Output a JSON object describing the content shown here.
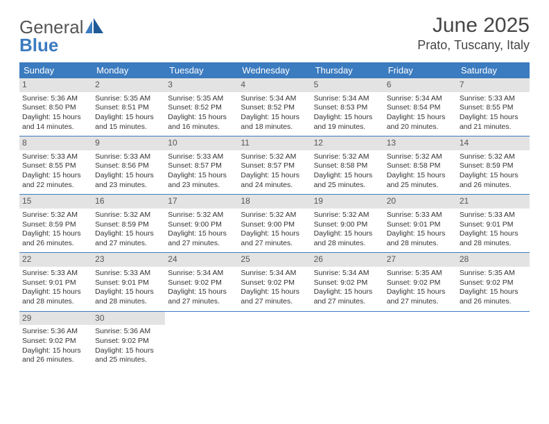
{
  "logo": {
    "text1": "General",
    "text2": "Blue"
  },
  "title": "June 2025",
  "location": "Prato, Tuscany, Italy",
  "colors": {
    "header_bg": "#3b7bbf",
    "header_text": "#ffffff",
    "daynum_bg": "#e3e3e3",
    "week_divider": "#3b7bbf",
    "text": "#333333"
  },
  "weekdays": [
    "Sunday",
    "Monday",
    "Tuesday",
    "Wednesday",
    "Thursday",
    "Friday",
    "Saturday"
  ],
  "weeks": [
    [
      {
        "n": "1",
        "sr": "Sunrise: 5:36 AM",
        "ss": "Sunset: 8:50 PM",
        "d1": "Daylight: 15 hours",
        "d2": "and 14 minutes."
      },
      {
        "n": "2",
        "sr": "Sunrise: 5:35 AM",
        "ss": "Sunset: 8:51 PM",
        "d1": "Daylight: 15 hours",
        "d2": "and 15 minutes."
      },
      {
        "n": "3",
        "sr": "Sunrise: 5:35 AM",
        "ss": "Sunset: 8:52 PM",
        "d1": "Daylight: 15 hours",
        "d2": "and 16 minutes."
      },
      {
        "n": "4",
        "sr": "Sunrise: 5:34 AM",
        "ss": "Sunset: 8:52 PM",
        "d1": "Daylight: 15 hours",
        "d2": "and 18 minutes."
      },
      {
        "n": "5",
        "sr": "Sunrise: 5:34 AM",
        "ss": "Sunset: 8:53 PM",
        "d1": "Daylight: 15 hours",
        "d2": "and 19 minutes."
      },
      {
        "n": "6",
        "sr": "Sunrise: 5:34 AM",
        "ss": "Sunset: 8:54 PM",
        "d1": "Daylight: 15 hours",
        "d2": "and 20 minutes."
      },
      {
        "n": "7",
        "sr": "Sunrise: 5:33 AM",
        "ss": "Sunset: 8:55 PM",
        "d1": "Daylight: 15 hours",
        "d2": "and 21 minutes."
      }
    ],
    [
      {
        "n": "8",
        "sr": "Sunrise: 5:33 AM",
        "ss": "Sunset: 8:55 PM",
        "d1": "Daylight: 15 hours",
        "d2": "and 22 minutes."
      },
      {
        "n": "9",
        "sr": "Sunrise: 5:33 AM",
        "ss": "Sunset: 8:56 PM",
        "d1": "Daylight: 15 hours",
        "d2": "and 23 minutes."
      },
      {
        "n": "10",
        "sr": "Sunrise: 5:33 AM",
        "ss": "Sunset: 8:57 PM",
        "d1": "Daylight: 15 hours",
        "d2": "and 23 minutes."
      },
      {
        "n": "11",
        "sr": "Sunrise: 5:32 AM",
        "ss": "Sunset: 8:57 PM",
        "d1": "Daylight: 15 hours",
        "d2": "and 24 minutes."
      },
      {
        "n": "12",
        "sr": "Sunrise: 5:32 AM",
        "ss": "Sunset: 8:58 PM",
        "d1": "Daylight: 15 hours",
        "d2": "and 25 minutes."
      },
      {
        "n": "13",
        "sr": "Sunrise: 5:32 AM",
        "ss": "Sunset: 8:58 PM",
        "d1": "Daylight: 15 hours",
        "d2": "and 25 minutes."
      },
      {
        "n": "14",
        "sr": "Sunrise: 5:32 AM",
        "ss": "Sunset: 8:59 PM",
        "d1": "Daylight: 15 hours",
        "d2": "and 26 minutes."
      }
    ],
    [
      {
        "n": "15",
        "sr": "Sunrise: 5:32 AM",
        "ss": "Sunset: 8:59 PM",
        "d1": "Daylight: 15 hours",
        "d2": "and 26 minutes."
      },
      {
        "n": "16",
        "sr": "Sunrise: 5:32 AM",
        "ss": "Sunset: 8:59 PM",
        "d1": "Daylight: 15 hours",
        "d2": "and 27 minutes."
      },
      {
        "n": "17",
        "sr": "Sunrise: 5:32 AM",
        "ss": "Sunset: 9:00 PM",
        "d1": "Daylight: 15 hours",
        "d2": "and 27 minutes."
      },
      {
        "n": "18",
        "sr": "Sunrise: 5:32 AM",
        "ss": "Sunset: 9:00 PM",
        "d1": "Daylight: 15 hours",
        "d2": "and 27 minutes."
      },
      {
        "n": "19",
        "sr": "Sunrise: 5:32 AM",
        "ss": "Sunset: 9:00 PM",
        "d1": "Daylight: 15 hours",
        "d2": "and 28 minutes."
      },
      {
        "n": "20",
        "sr": "Sunrise: 5:33 AM",
        "ss": "Sunset: 9:01 PM",
        "d1": "Daylight: 15 hours",
        "d2": "and 28 minutes."
      },
      {
        "n": "21",
        "sr": "Sunrise: 5:33 AM",
        "ss": "Sunset: 9:01 PM",
        "d1": "Daylight: 15 hours",
        "d2": "and 28 minutes."
      }
    ],
    [
      {
        "n": "22",
        "sr": "Sunrise: 5:33 AM",
        "ss": "Sunset: 9:01 PM",
        "d1": "Daylight: 15 hours",
        "d2": "and 28 minutes."
      },
      {
        "n": "23",
        "sr": "Sunrise: 5:33 AM",
        "ss": "Sunset: 9:01 PM",
        "d1": "Daylight: 15 hours",
        "d2": "and 28 minutes."
      },
      {
        "n": "24",
        "sr": "Sunrise: 5:34 AM",
        "ss": "Sunset: 9:02 PM",
        "d1": "Daylight: 15 hours",
        "d2": "and 27 minutes."
      },
      {
        "n": "25",
        "sr": "Sunrise: 5:34 AM",
        "ss": "Sunset: 9:02 PM",
        "d1": "Daylight: 15 hours",
        "d2": "and 27 minutes."
      },
      {
        "n": "26",
        "sr": "Sunrise: 5:34 AM",
        "ss": "Sunset: 9:02 PM",
        "d1": "Daylight: 15 hours",
        "d2": "and 27 minutes."
      },
      {
        "n": "27",
        "sr": "Sunrise: 5:35 AM",
        "ss": "Sunset: 9:02 PM",
        "d1": "Daylight: 15 hours",
        "d2": "and 27 minutes."
      },
      {
        "n": "28",
        "sr": "Sunrise: 5:35 AM",
        "ss": "Sunset: 9:02 PM",
        "d1": "Daylight: 15 hours",
        "d2": "and 26 minutes."
      }
    ],
    [
      {
        "n": "29",
        "sr": "Sunrise: 5:36 AM",
        "ss": "Sunset: 9:02 PM",
        "d1": "Daylight: 15 hours",
        "d2": "and 26 minutes."
      },
      {
        "n": "30",
        "sr": "Sunrise: 5:36 AM",
        "ss": "Sunset: 9:02 PM",
        "d1": "Daylight: 15 hours",
        "d2": "and 25 minutes."
      },
      null,
      null,
      null,
      null,
      null
    ]
  ]
}
